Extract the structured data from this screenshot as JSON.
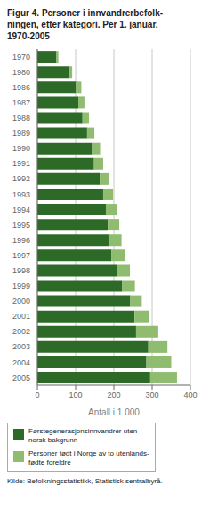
{
  "chart_data": {
    "type": "bar",
    "orientation": "horizontal",
    "stacked": true,
    "title": "Figur 4. Personer i innvandrerbefolk-\nningen, etter kategori. Per 1. januar.\n1970-2005",
    "categories": [
      "1970",
      "1980",
      "1986",
      "1987",
      "1988",
      "1989",
      "1990",
      "1991",
      "1992",
      "1993",
      "1994",
      "1995",
      "1996",
      "1997",
      "1998",
      "1999",
      "2000",
      "2001",
      "2002",
      "2003",
      "2004",
      "2005"
    ],
    "series": [
      {
        "name": "Førstegenerasjonsinnvandrer uten\nnorsk bakgrunn",
        "color": "#2d6a27",
        "values": [
          50,
          83,
          101,
          107,
          118,
          130,
          143,
          148,
          163,
          172,
          179,
          184,
          186,
          194,
          207,
          222,
          243,
          254,
          258,
          290,
          285,
          295
        ]
      },
      {
        "name": "Personer født i Norge av to utenlands-\nfødte foreldre",
        "color": "#8fbc6f",
        "values": [
          5,
          8,
          14,
          16,
          17,
          19,
          21,
          24,
          24,
          26,
          28,
          30,
          34,
          34,
          35,
          33,
          30,
          38,
          58,
          50,
          65,
          70
        ]
      }
    ],
    "xlabel": "Antall i 1 000",
    "xlim": [
      0,
      400
    ],
    "xticks": [
      0,
      100,
      200,
      300,
      400
    ],
    "grid": true,
    "legend": "bottom",
    "annotations": [
      "Kilde: Befolkningsstatistikk, Statistisk sentralbyrå."
    ]
  }
}
